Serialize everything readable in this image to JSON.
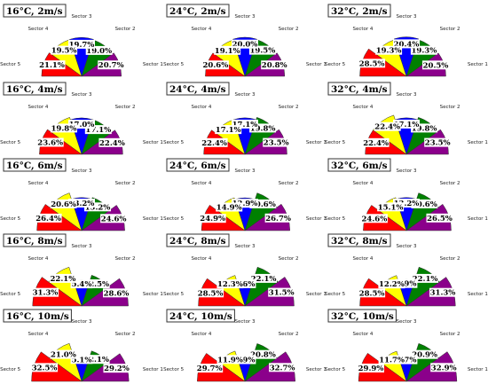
{
  "chart_data": {
    "type": "radial-bar",
    "sector_labels": [
      "Sector 1",
      "Sector 2",
      "Sector 3",
      "Sector 4",
      "Sector 5"
    ],
    "sector_colors": [
      "#8b008b",
      "#008000",
      "#0000ff",
      "#ffff00",
      "#ff0000"
    ],
    "unit": "%",
    "panels": [
      {
        "title": "16°C, 2m/s",
        "values": [
          20.7,
          19.0,
          19.7,
          19.5,
          21.1
        ]
      },
      {
        "title": "24°C, 2m/s",
        "values": [
          20.8,
          19.5,
          20.0,
          19.1,
          20.6
        ]
      },
      {
        "title": "32°C, 2m/s",
        "values": [
          20.5,
          19.3,
          20.4,
          19.3,
          28.5
        ]
      },
      {
        "title": "16°C, 4m/s",
        "values": [
          22.4,
          17.1,
          17.0,
          19.8,
          23.6
        ]
      },
      {
        "title": "24°C, 4m/s",
        "values": [
          23.5,
          19.8,
          17.1,
          17.1,
          22.4
        ]
      },
      {
        "title": "32°C, 4m/s",
        "values": [
          23.5,
          19.8,
          17.1,
          22.4,
          22.4
        ]
      },
      {
        "title": "16°C, 6m/s",
        "values": [
          24.6,
          15.2,
          13.2,
          20.6,
          26.4
        ]
      },
      {
        "title": "24°C, 6m/s",
        "values": [
          26.7,
          20.6,
          12.9,
          14.9,
          24.9
        ]
      },
      {
        "title": "32°C, 6m/s",
        "values": [
          26.5,
          20.6,
          13.2,
          15.1,
          24.6
        ]
      },
      {
        "title": "16°C, 8m/s",
        "values": [
          28.6,
          12.5,
          5.4,
          22.1,
          31.3
        ]
      },
      {
        "title": "24°C, 8m/s",
        "values": [
          31.5,
          22.1,
          5.6,
          12.3,
          28.5
        ]
      },
      {
        "title": "32°C, 8m/s",
        "values": [
          31.3,
          22.1,
          5.9,
          12.2,
          28.5
        ]
      },
      {
        "title": "16°C, 10m/s",
        "values": [
          29.2,
          12.1,
          5.1,
          21.0,
          32.5
        ]
      },
      {
        "title": "24°C, 10m/s",
        "values": [
          32.7,
          20.8,
          4.9,
          11.9,
          29.7
        ]
      },
      {
        "title": "32°C, 10m/s",
        "values": [
          32.9,
          20.9,
          4.7,
          11.7,
          29.9
        ]
      }
    ]
  }
}
